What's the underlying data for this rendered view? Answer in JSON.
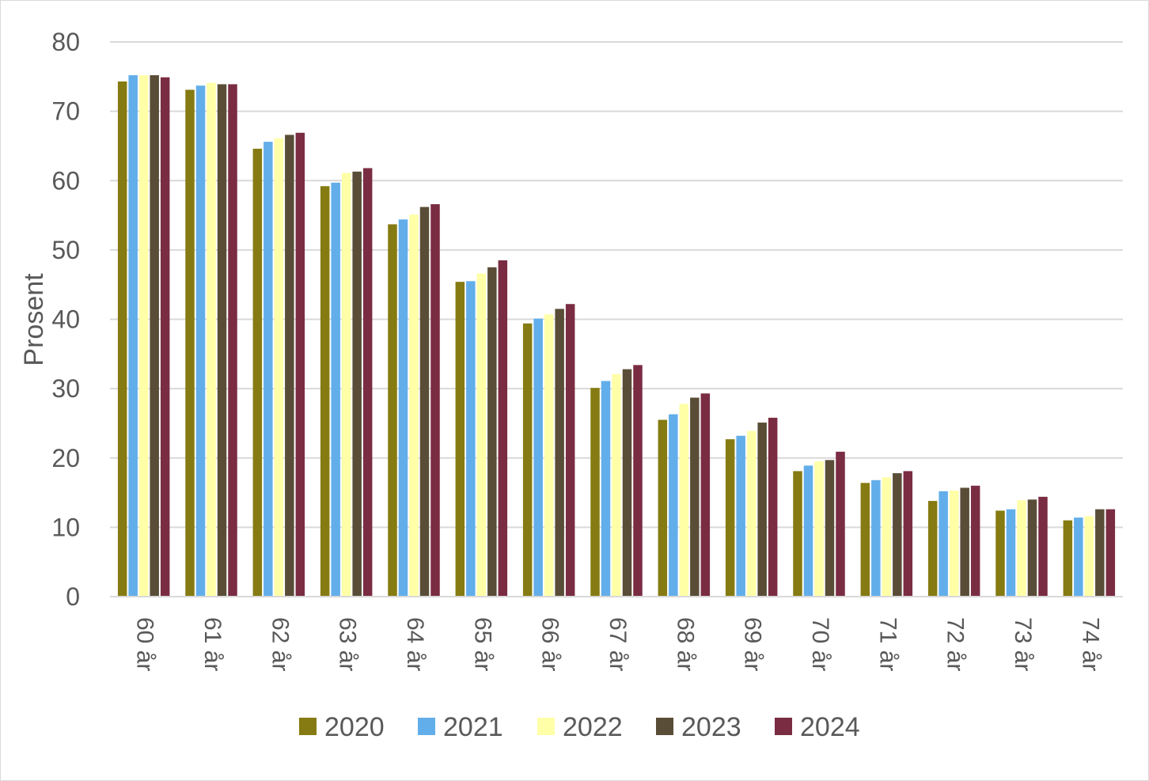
{
  "chart_data": {
    "type": "bar",
    "title": "",
    "xlabel": "",
    "ylabel": "Prosent",
    "ylim": [
      0,
      80
    ],
    "yticks": [
      "0",
      "10",
      "20",
      "30",
      "40",
      "50",
      "60",
      "70",
      "80"
    ],
    "grid": true,
    "legend_position": "bottom",
    "categories": [
      "60 år",
      "61 år",
      "62 år",
      "63 år",
      "64 år",
      "65 år",
      "66 år",
      "67 år",
      "68 år",
      "69 år",
      "70 år",
      "71 år",
      "72 år",
      "73 år",
      "74 år"
    ],
    "series": [
      {
        "name": "2020",
        "color": "#857b12",
        "values": [
          74.3,
          73.1,
          64.6,
          59.2,
          53.7,
          45.4,
          39.4,
          30.1,
          25.5,
          22.7,
          18.1,
          16.4,
          13.8,
          12.4,
          11.0
        ]
      },
      {
        "name": "2021",
        "color": "#62aeea",
        "values": [
          75.2,
          73.7,
          65.6,
          59.7,
          54.4,
          45.5,
          40.1,
          31.1,
          26.3,
          23.2,
          18.9,
          16.8,
          15.2,
          12.6,
          11.4
        ]
      },
      {
        "name": "2022",
        "color": "#ffffa8",
        "values": [
          75.2,
          74.1,
          66.1,
          61.1,
          55.1,
          46.6,
          40.7,
          32.1,
          27.8,
          23.9,
          19.5,
          17.2,
          15.3,
          13.9,
          11.6
        ]
      },
      {
        "name": "2023",
        "color": "#5a4d37",
        "values": [
          75.2,
          73.9,
          66.6,
          61.3,
          56.2,
          47.5,
          41.5,
          32.8,
          28.7,
          25.1,
          19.7,
          17.8,
          15.7,
          14.0,
          12.6
        ]
      },
      {
        "name": "2024",
        "color": "#7a2c43",
        "values": [
          74.9,
          73.9,
          66.9,
          61.8,
          56.6,
          48.5,
          42.2,
          33.4,
          29.3,
          25.8,
          20.9,
          18.1,
          16.0,
          14.4,
          12.6
        ]
      }
    ]
  }
}
